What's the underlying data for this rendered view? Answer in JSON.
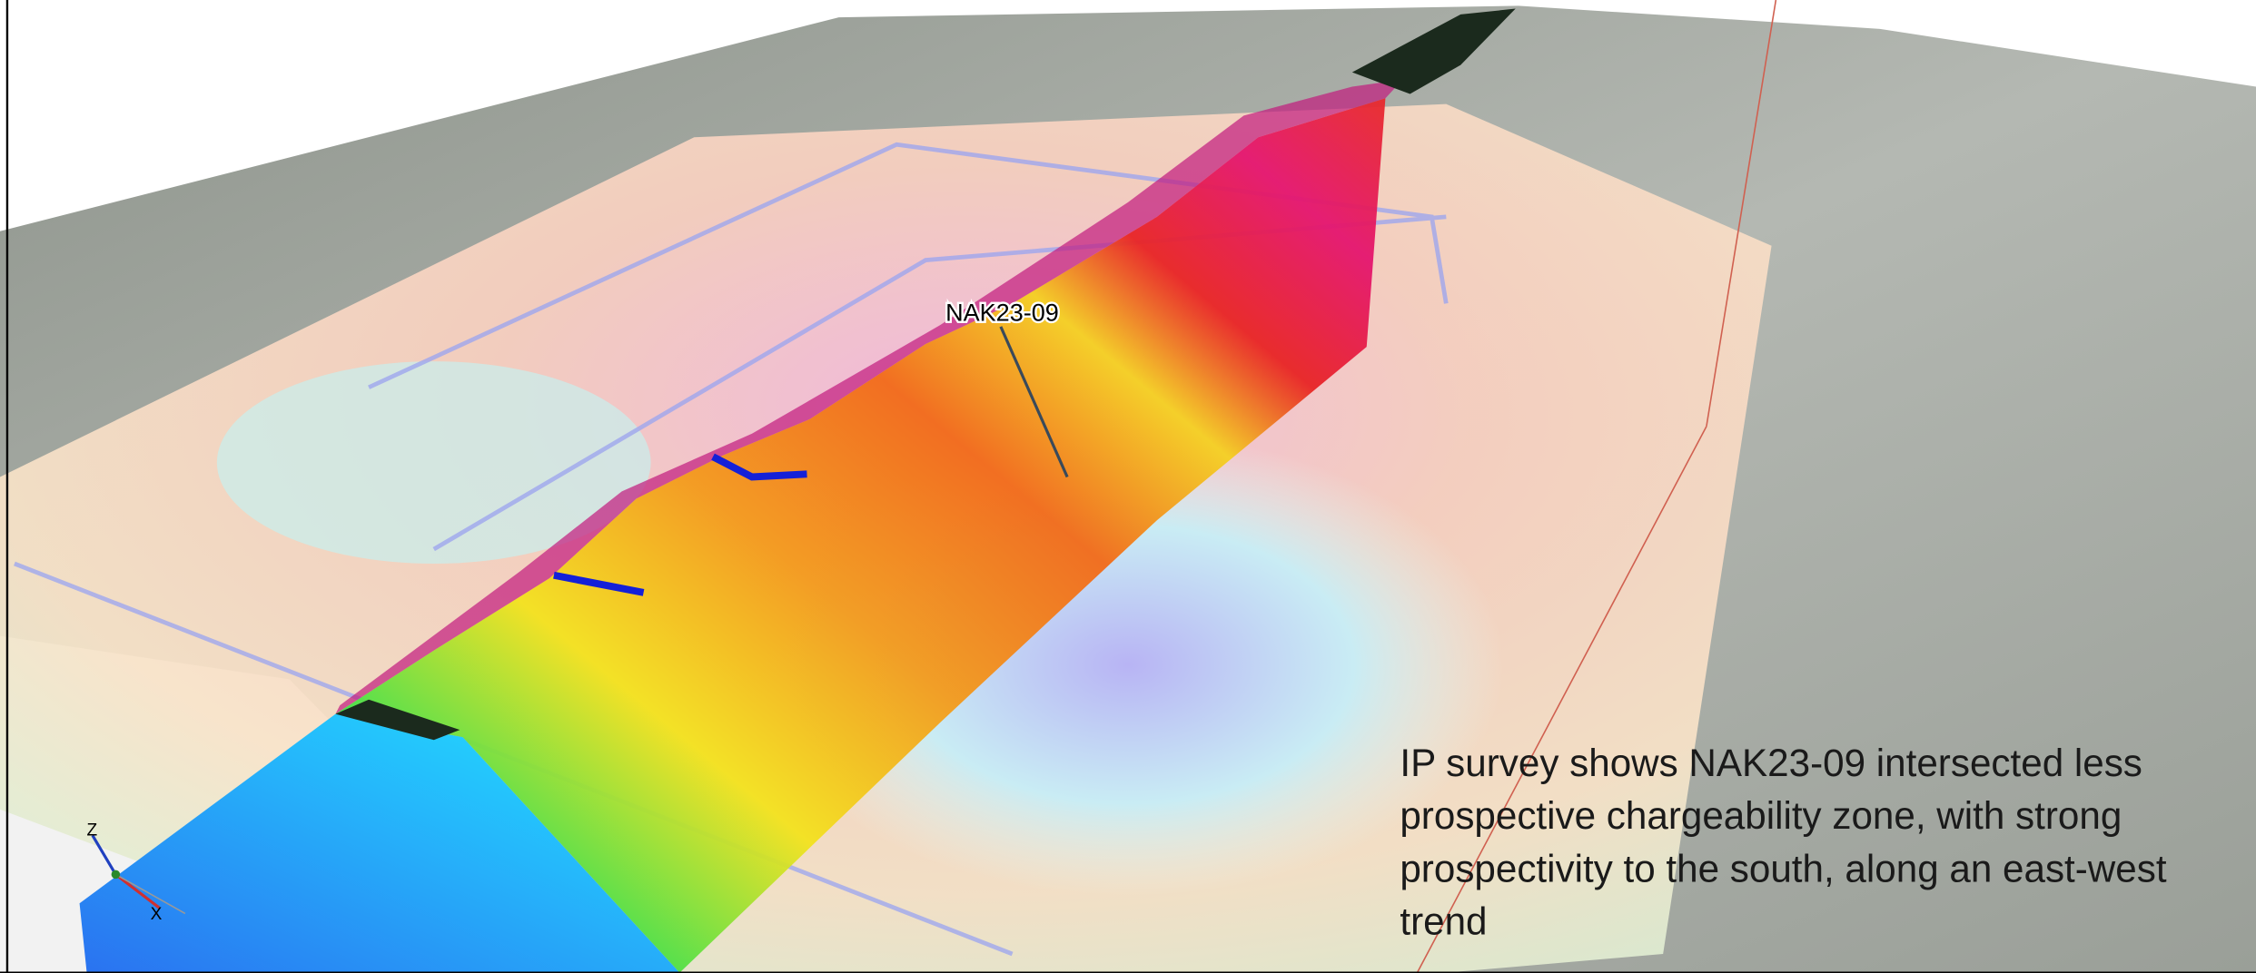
{
  "label": "NAK23-09",
  "caption": [
    "IP survey shows NAK23-09 intersected less",
    "prospective chargeability zone, with strong",
    "prospectivity to the south, along an east-west",
    "trend"
  ],
  "axes": {
    "z": "Z",
    "x": "X"
  }
}
